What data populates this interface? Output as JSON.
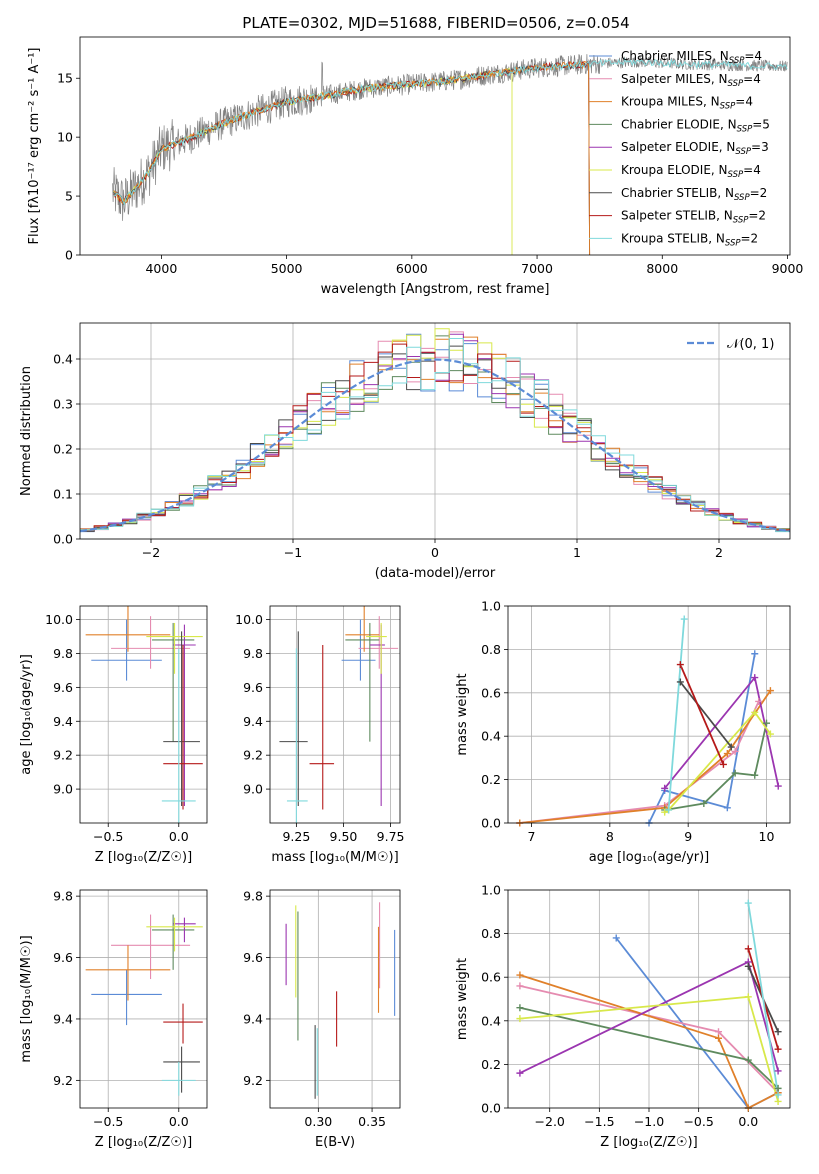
{
  "figure": {
    "title": "PLATE=0302, MJD=51688, FIBERID=0506, z=0.054"
  },
  "colors": {
    "ChabrierMILES": "#5b8bd6",
    "SalpeterMILES": "#e58bb0",
    "KroupaMILES": "#e0802a",
    "ChabrierELODIE": "#5e8a5e",
    "SalpeterELODIE": "#9b35b0",
    "KroupaELODIE": "#d8e84a",
    "ChabrierSTELIB": "#4a4a4a",
    "SalpeterSTELIB": "#b51a1a",
    "KroupaSTELIB": "#7fd9dc",
    "observed": "#808080",
    "normal": "#5b8bd6"
  },
  "chart_data": [
    {
      "id": "spectrum",
      "type": "line",
      "xlabel": "wavelength [Angstrom, rest frame]",
      "ylabel": "Flux [fλ10⁻¹⁷ erg cm⁻² s⁻¹ A⁻¹]",
      "xlim": [
        3350,
        9020
      ],
      "ylim": [
        0,
        18.5
      ],
      "xticks": [
        4000,
        5000,
        6000,
        7000,
        8000,
        9000
      ],
      "yticks": [
        0,
        5,
        10,
        15
      ],
      "grid": false,
      "legend_position": "top-right",
      "legend": [
        {
          "label": "Chabrier MILES, N",
          "sub": "SSP",
          "tail": "=4",
          "color_key": "ChabrierMILES"
        },
        {
          "label": "Salpeter MILES, N",
          "sub": "SSP",
          "tail": "=4",
          "color_key": "SalpeterMILES"
        },
        {
          "label": "Kroupa MILES, N",
          "sub": "SSP",
          "tail": "=4",
          "color_key": "KroupaMILES"
        },
        {
          "label": "Chabrier ELODIE, N",
          "sub": "SSP",
          "tail": "=5",
          "color_key": "ChabrierELODIE"
        },
        {
          "label": "Salpeter ELODIE, N",
          "sub": "SSP",
          "tail": "=3",
          "color_key": "SalpeterELODIE"
        },
        {
          "label": "Kroupa ELODIE, N",
          "sub": "SSP",
          "tail": "=4",
          "color_key": "KroupaELODIE"
        },
        {
          "label": "Chabrier STELIB, N",
          "sub": "SSP",
          "tail": "=2",
          "color_key": "ChabrierSTELIB"
        },
        {
          "label": "Salpeter STELIB, N",
          "sub": "SSP",
          "tail": "=2",
          "color_key": "SalpeterSTELIB"
        },
        {
          "label": "Kroupa STELIB, N",
          "sub": "SSP",
          "tail": "=2",
          "color_key": "KroupaSTELIB"
        }
      ],
      "continuum": {
        "x": [
          3600,
          3700,
          3900,
          4000,
          4200,
          4500,
          4800,
          5000,
          5300,
          5600,
          6000,
          6300,
          6600,
          7000,
          7400,
          7800,
          8200,
          8600,
          9000
        ],
        "y": [
          5.5,
          4.5,
          7.0,
          9.0,
          9.8,
          11.2,
          12.3,
          13.0,
          13.5,
          14.1,
          14.5,
          14.8,
          15.3,
          15.9,
          16.2,
          16.4,
          16.2,
          16.1,
          16.0
        ]
      },
      "model_ranges": {
        "KroupaELODIE": [
          3620,
          6800
        ],
        "SalpeterSTELIB": [
          3620,
          7420
        ],
        "ChabrierSTELIB": [
          3620,
          7420
        ],
        "KroupaMILES": [
          3620,
          7420
        ],
        "KroupaSTELIB": [
          3620,
          9000
        ]
      }
    },
    {
      "id": "residuals",
      "type": "histogram",
      "xlabel": "(data-model)/error",
      "ylabel": "Normed distribution",
      "xlim": [
        -2.5,
        2.5
      ],
      "ylim": [
        0,
        0.48
      ],
      "xticks": [
        -2,
        -1,
        0,
        1,
        2
      ],
      "yticks": [
        0.0,
        0.1,
        0.2,
        0.3,
        0.4
      ],
      "grid": true,
      "legend_position": "top-right",
      "legend_label": "𝒩(0, 1)",
      "bin_width": 0.1
    },
    {
      "id": "age-vs-Z",
      "type": "errorbar",
      "xlabel": "Z [log₁₀(Z/Z☉)]",
      "ylabel": "age  [log₁₀(age/yr)]",
      "xlim": [
        -0.7,
        0.2
      ],
      "ylim": [
        8.8,
        10.08
      ],
      "xticks": [
        -0.5,
        0.0
      ],
      "yticks": [
        9.0,
        9.2,
        9.4,
        9.6,
        9.8,
        10.0
      ],
      "grid": true,
      "points": [
        {
          "key": "ChabrierMILES",
          "x": -0.37,
          "xerr": [
            0.25,
            0.25
          ],
          "y": 9.76,
          "yerr": [
            0.12,
            0.24
          ]
        },
        {
          "key": "SalpeterMILES",
          "x": -0.2,
          "xerr": [
            0.28,
            0.28
          ],
          "y": 9.83,
          "yerr": [
            0.12,
            0.19
          ]
        },
        {
          "key": "KroupaMILES",
          "x": -0.36,
          "xerr": [
            0.3,
            0.3
          ],
          "y": 9.91,
          "yerr": [
            0.1,
            0.2
          ]
        },
        {
          "key": "ChabrierELODIE",
          "x": -0.04,
          "xerr": [
            0.15,
            0.15
          ],
          "y": 9.88,
          "yerr": [
            0.6,
            0.1
          ]
        },
        {
          "key": "SalpeterELODIE",
          "x": 0.04,
          "xerr": [
            0.08,
            0.08
          ],
          "y": 9.85,
          "yerr": [
            0.95,
            0.12
          ]
        },
        {
          "key": "KroupaELODIE",
          "x": -0.03,
          "xerr": [
            0.2,
            0.2
          ],
          "y": 9.9,
          "yerr": [
            0.22,
            0.08
          ]
        },
        {
          "key": "ChabrierSTELIB",
          "x": 0.02,
          "xerr": [
            0.13,
            0.13
          ],
          "y": 9.28,
          "yerr": [
            0.38,
            0.65
          ]
        },
        {
          "key": "SalpeterSTELIB",
          "x": 0.03,
          "xerr": [
            0.14,
            0.14
          ],
          "y": 9.15,
          "yerr": [
            0.27,
            0.7
          ]
        },
        {
          "key": "KroupaSTELIB",
          "x": 0.0,
          "xerr": [
            0.12,
            0.12
          ],
          "y": 8.93,
          "yerr": [
            0.25,
            0.9
          ]
        }
      ]
    },
    {
      "id": "age-vs-mass",
      "type": "errorbar",
      "xlabel": "mass [log₁₀(M/M☉)]",
      "ylabel": "",
      "xlim": [
        9.11,
        9.8
      ],
      "ylim": [
        8.8,
        10.08
      ],
      "xticks": [
        9.25,
        9.5,
        9.75
      ],
      "yticks": [
        9.0,
        9.2,
        9.4,
        9.6,
        9.8,
        10.0
      ],
      "grid": true,
      "points": [
        {
          "key": "ChabrierMILES",
          "x": 9.59,
          "xerr": [
            0.1,
            0.08
          ],
          "y": 9.76,
          "yerr": [
            0.12,
            0.24
          ]
        },
        {
          "key": "SalpeterMILES",
          "x": 9.69,
          "xerr": [
            0.11,
            0.1
          ],
          "y": 9.83,
          "yerr": [
            0.12,
            0.19
          ]
        },
        {
          "key": "KroupaMILES",
          "x": 9.61,
          "xerr": [
            0.1,
            0.08
          ],
          "y": 9.91,
          "yerr": [
            0.1,
            0.2
          ]
        },
        {
          "key": "ChabrierELODIE",
          "x": 9.64,
          "xerr": [
            0.13,
            0.05
          ],
          "y": 9.88,
          "yerr": [
            0.6,
            0.1
          ]
        },
        {
          "key": "SalpeterELODIE",
          "x": 9.7,
          "xerr": [
            0.06,
            0.02
          ],
          "y": 9.85,
          "yerr": [
            0.95,
            0.12
          ]
        },
        {
          "key": "KroupaELODIE",
          "x": 9.7,
          "xerr": [
            0.08,
            0.03
          ],
          "y": 9.9,
          "yerr": [
            0.22,
            0.08
          ]
        },
        {
          "key": "ChabrierSTELIB",
          "x": 9.26,
          "xerr": [
            0.1,
            0.05
          ],
          "y": 9.28,
          "yerr": [
            0.38,
            0.65
          ]
        },
        {
          "key": "SalpeterSTELIB",
          "x": 9.39,
          "xerr": [
            0.07,
            0.06
          ],
          "y": 9.15,
          "yerr": [
            0.27,
            0.7
          ]
        },
        {
          "key": "KroupaSTELIB",
          "x": 9.25,
          "xerr": [
            0.05,
            0.06
          ],
          "y": 8.93,
          "yerr": [
            0.25,
            0.9
          ]
        }
      ]
    },
    {
      "id": "weight-vs-age",
      "type": "line",
      "xlabel": "age  [log₁₀(age/yr)]",
      "ylabel": "mass weight",
      "xlim": [
        6.7,
        10.3
      ],
      "ylim": [
        0,
        1.0
      ],
      "xticks": [
        7,
        8,
        9,
        10
      ],
      "yticks": [
        0.0,
        0.2,
        0.4,
        0.6,
        0.8,
        1.0
      ],
      "grid": true,
      "series": [
        {
          "key": "ChabrierMILES",
          "x": [
            8.5,
            8.7,
            9.5,
            9.85
          ],
          "y": [
            0.0,
            0.15,
            0.07,
            0.78
          ]
        },
        {
          "key": "SalpeterMILES",
          "x": [
            6.85,
            8.7,
            9.6,
            9.9
          ],
          "y": [
            0.0,
            0.08,
            0.33,
            0.56
          ]
        },
        {
          "key": "KroupaMILES",
          "x": [
            6.85,
            8.7,
            9.5,
            10.05
          ],
          "y": [
            0.0,
            0.07,
            0.32,
            0.61
          ]
        },
        {
          "key": "ChabrierELODIE",
          "x": [
            8.7,
            9.2,
            9.6,
            9.85,
            10.0
          ],
          "y": [
            0.06,
            0.09,
            0.23,
            0.22,
            0.46
          ]
        },
        {
          "key": "SalpeterELODIE",
          "x": [
            8.7,
            9.85,
            10.15
          ],
          "y": [
            0.16,
            0.67,
            0.17
          ]
        },
        {
          "key": "KroupaELODIE",
          "x": [
            8.7,
            8.75,
            9.85,
            10.05
          ],
          "y": [
            0.05,
            0.06,
            0.51,
            0.41
          ]
        },
        {
          "key": "ChabrierSTELIB",
          "x": [
            8.9,
            9.55
          ],
          "y": [
            0.65,
            0.35
          ]
        },
        {
          "key": "SalpeterSTELIB",
          "x": [
            8.9,
            9.45
          ],
          "y": [
            0.73,
            0.27
          ]
        },
        {
          "key": "KroupaSTELIB",
          "x": [
            8.75,
            8.95
          ],
          "y": [
            0.06,
            0.94
          ]
        }
      ]
    },
    {
      "id": "mass-vs-Z",
      "type": "errorbar",
      "xlabel": "Z [log₁₀(Z/Z☉)]",
      "ylabel": "mass [log₁₀(M/M☉)]",
      "xlim": [
        -0.7,
        0.2
      ],
      "ylim": [
        9.11,
        9.82
      ],
      "xticks": [
        -0.5,
        0.0
      ],
      "yticks": [
        9.2,
        9.4,
        9.6,
        9.8
      ],
      "grid": true,
      "points": [
        {
          "key": "ChabrierMILES",
          "x": -0.37,
          "xerr": [
            0.25,
            0.25
          ],
          "y": 9.48,
          "yerr": [
            0.1,
            0.08
          ]
        },
        {
          "key": "SalpeterMILES",
          "x": -0.2,
          "xerr": [
            0.28,
            0.28
          ],
          "y": 9.64,
          "yerr": [
            0.11,
            0.1
          ]
        },
        {
          "key": "KroupaMILES",
          "x": -0.36,
          "xerr": [
            0.3,
            0.3
          ],
          "y": 9.56,
          "yerr": [
            0.1,
            0.08
          ]
        },
        {
          "key": "ChabrierELODIE",
          "x": -0.04,
          "xerr": [
            0.15,
            0.15
          ],
          "y": 9.69,
          "yerr": [
            0.13,
            0.05
          ]
        },
        {
          "key": "SalpeterELODIE",
          "x": 0.04,
          "xerr": [
            0.08,
            0.08
          ],
          "y": 9.71,
          "yerr": [
            0.06,
            0.02
          ]
        },
        {
          "key": "KroupaELODIE",
          "x": -0.03,
          "xerr": [
            0.2,
            0.2
          ],
          "y": 9.7,
          "yerr": [
            0.08,
            0.03
          ]
        },
        {
          "key": "ChabrierSTELIB",
          "x": 0.02,
          "xerr": [
            0.13,
            0.13
          ],
          "y": 9.26,
          "yerr": [
            0.1,
            0.05
          ]
        },
        {
          "key": "SalpeterSTELIB",
          "x": 0.03,
          "xerr": [
            0.14,
            0.14
          ],
          "y": 9.39,
          "yerr": [
            0.07,
            0.06
          ]
        },
        {
          "key": "KroupaSTELIB",
          "x": 0.0,
          "xerr": [
            0.12,
            0.12
          ],
          "y": 9.2,
          "yerr": [
            0.05,
            0.06
          ]
        }
      ]
    },
    {
      "id": "mass-vs-ebv",
      "type": "errorbar",
      "xlabel": "E(B-V)",
      "ylabel": "",
      "xlim": [
        0.255,
        0.376
      ],
      "ylim": [
        9.11,
        9.82
      ],
      "xticks": [
        0.3,
        0.35
      ],
      "yticks": [
        9.2,
        9.4,
        9.6,
        9.8
      ],
      "grid": true,
      "points": [
        {
          "key": "ChabrierMILES",
          "x": 0.371,
          "y": 9.55,
          "yerr": [
            0.14,
            0.14
          ]
        },
        {
          "key": "SalpeterMILES",
          "x": 0.357,
          "y": 9.64,
          "yerr": [
            0.14,
            0.14
          ]
        },
        {
          "key": "KroupaMILES",
          "x": 0.356,
          "y": 9.56,
          "yerr": [
            0.14,
            0.14
          ]
        },
        {
          "key": "ChabrierELODIE",
          "x": 0.281,
          "y": 9.55,
          "yerr": [
            0.22,
            0.2
          ]
        },
        {
          "key": "SalpeterELODIE",
          "x": 0.27,
          "y": 9.61,
          "yerr": [
            0.1,
            0.1
          ]
        },
        {
          "key": "KroupaELODIE",
          "x": 0.279,
          "y": 9.62,
          "yerr": [
            0.15,
            0.15
          ]
        },
        {
          "key": "ChabrierSTELIB",
          "x": 0.297,
          "y": 9.26,
          "yerr": [
            0.12,
            0.12
          ]
        },
        {
          "key": "SalpeterSTELIB",
          "x": 0.317,
          "y": 9.4,
          "yerr": [
            0.09,
            0.09
          ]
        },
        {
          "key": "KroupaSTELIB",
          "x": 0.299,
          "y": 9.26,
          "yerr": [
            0.11,
            0.11
          ]
        }
      ]
    },
    {
      "id": "weight-vs-Z",
      "type": "line",
      "xlabel": "Z [log₁₀(Z/Z☉)]",
      "ylabel": "mass weight",
      "xlim": [
        -2.42,
        0.42
      ],
      "ylim": [
        0,
        1.0
      ],
      "xticks": [
        -2.0,
        -1.5,
        -1.0,
        -0.5,
        0.0
      ],
      "yticks": [
        0.0,
        0.2,
        0.4,
        0.6,
        0.8,
        1.0
      ],
      "grid": true,
      "series": [
        {
          "key": "ChabrierMILES",
          "x": [
            -1.33,
            0.0,
            0.3
          ],
          "y": [
            0.78,
            0.0,
            0.07
          ]
        },
        {
          "key": "SalpeterMILES",
          "x": [
            -2.3,
            -0.3,
            0.3
          ],
          "y": [
            0.56,
            0.35,
            0.07
          ]
        },
        {
          "key": "KroupaMILES",
          "x": [
            -2.3,
            -0.3,
            0.0,
            0.3
          ],
          "y": [
            0.61,
            0.32,
            0.0,
            0.07
          ]
        },
        {
          "key": "ChabrierELODIE",
          "x": [
            -2.3,
            0.0,
            0.3
          ],
          "y": [
            0.46,
            0.22,
            0.09
          ]
        },
        {
          "key": "SalpeterELODIE",
          "x": [
            -2.3,
            0.0,
            0.3
          ],
          "y": [
            0.16,
            0.67,
            0.17
          ]
        },
        {
          "key": "KroupaELODIE",
          "x": [
            -2.3,
            0.0,
            0.3
          ],
          "y": [
            0.41,
            0.51,
            0.03
          ]
        },
        {
          "key": "ChabrierSTELIB",
          "x": [
            0.0,
            0.3
          ],
          "y": [
            0.65,
            0.35
          ]
        },
        {
          "key": "SalpeterSTELIB",
          "x": [
            0.0,
            0.3
          ],
          "y": [
            0.73,
            0.27
          ]
        },
        {
          "key": "KroupaSTELIB",
          "x": [
            0.0,
            0.3
          ],
          "y": [
            0.94,
            0.06
          ]
        }
      ]
    }
  ]
}
